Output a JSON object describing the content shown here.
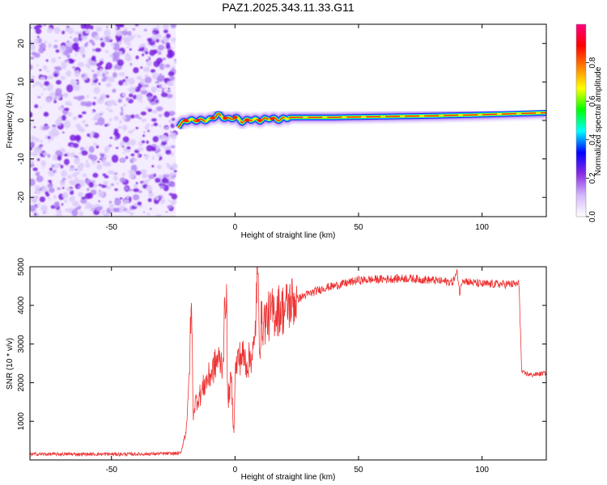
{
  "title": "PAZ1.2025.343.11.33.G11",
  "chart_data": [
    {
      "type": "heatmap",
      "name": "spectrogram",
      "xlabel": "Height of straight line (km)",
      "ylabel": "Frequency (Hz)",
      "xlim": [
        -83,
        126
      ],
      "ylim": [
        -25,
        25
      ],
      "x_ticks": [
        -50,
        0,
        50,
        100
      ],
      "x_tick_labels": [
        "-50",
        "0",
        "50",
        "100"
      ],
      "y_ticks": [
        -20,
        -10,
        0,
        10,
        20
      ],
      "y_tick_labels": [
        "-20",
        "-10",
        "0",
        "10",
        "20"
      ],
      "noise_region_x": [
        -83,
        -24
      ],
      "ridge": {
        "description_x_start": -24,
        "x": [
          -23,
          -20,
          -15,
          -10,
          -7,
          -3,
          0,
          3,
          6,
          10,
          14,
          18,
          22,
          40,
          60,
          80,
          100,
          126
        ],
        "frequency": [
          -1.5,
          0.0,
          0.0,
          0.2,
          1.5,
          0.3,
          0.8,
          -0.3,
          0.3,
          0.0,
          0.6,
          0.2,
          0.8,
          0.8,
          1.0,
          1.2,
          1.5,
          2.0
        ]
      }
    },
    {
      "type": "colorbar",
      "name": "colorbar",
      "label": "Normalized spectral amplitude",
      "range": [
        0.0,
        1.0
      ],
      "ticks": [
        0.0,
        0.2,
        0.4,
        0.6,
        0.8
      ],
      "tick_labels": [
        "0.0",
        "0.2",
        "0.4",
        "0.6",
        "0.8"
      ],
      "colors": [
        "#ffffff",
        "#d4b8ff",
        "#8a2be2",
        "#0000ff",
        "#00ffff",
        "#00ff00",
        "#ffff00",
        "#ff8000",
        "#ff0000",
        "#ff0080"
      ]
    },
    {
      "type": "line",
      "name": "snr",
      "xlabel": "Height of straight line (km)",
      "ylabel": "SNR (10 * v/v)",
      "xlim": [
        -83,
        126
      ],
      "ylim": [
        0,
        5000
      ],
      "x_ticks": [
        -50,
        0,
        50,
        100
      ],
      "x_tick_labels": [
        "-50",
        "0",
        "50",
        "100"
      ],
      "y_ticks": [
        1000,
        2000,
        3000,
        4000,
        5000
      ],
      "y_tick_labels": [
        "1000",
        "2000",
        "3000",
        "4000",
        "5000"
      ],
      "color": "#ee3333",
      "series": [
        {
          "name": "SNR",
          "x": [
            -83,
            -60,
            -40,
            -22,
            -20,
            -19,
            -18,
            -17.5,
            -17,
            -16,
            -14,
            -12,
            -10,
            -7,
            -5,
            -3.5,
            -3,
            -1.5,
            -0.5,
            0,
            1,
            3,
            5,
            8,
            9,
            10,
            10.5,
            12,
            15,
            18,
            20,
            23,
            25,
            28,
            32,
            36,
            40,
            50,
            60,
            70,
            80,
            88,
            90,
            91,
            92,
            93,
            95,
            100,
            110,
            115,
            116,
            116.5,
            117,
            120,
            126
          ],
          "values": [
            150,
            150,
            150,
            170,
            700,
            1400,
            3300,
            4000,
            1200,
            1500,
            1700,
            2000,
            2200,
            2600,
            2500,
            4700,
            1500,
            2100,
            650,
            2200,
            2600,
            2700,
            2500,
            2900,
            5050,
            3000,
            3500,
            3600,
            3800,
            3900,
            3900,
            4100,
            4150,
            4250,
            4350,
            4450,
            4500,
            4650,
            4680,
            4700,
            4650,
            4600,
            4850,
            4300,
            4700,
            4650,
            4600,
            4550,
            4550,
            4550,
            2300,
            2250,
            2250,
            2200,
            2250
          ]
        }
      ]
    }
  ]
}
